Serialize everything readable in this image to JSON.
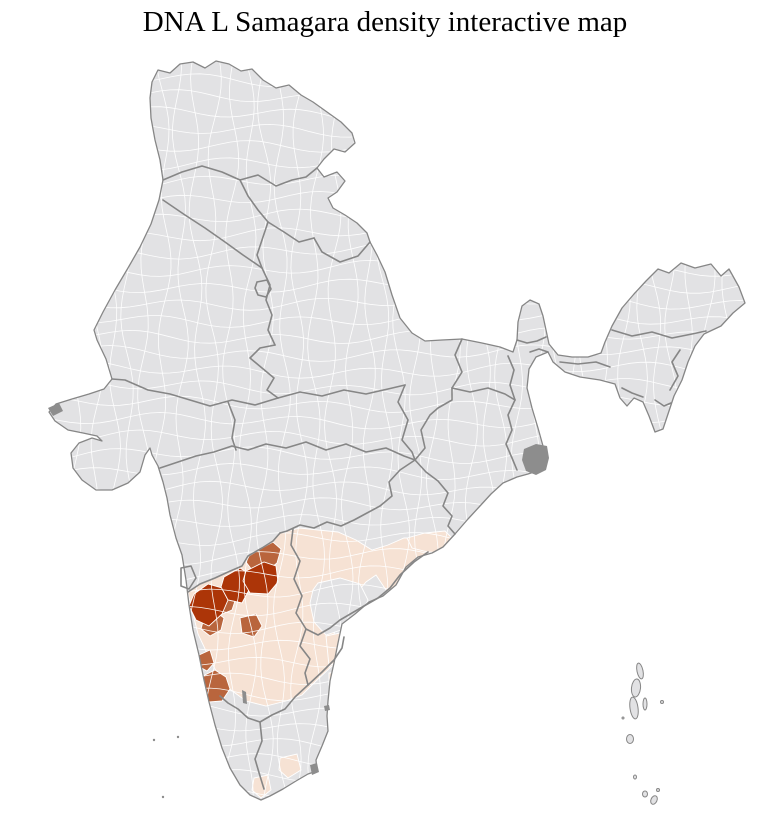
{
  "title": "DNA L Samagara density interactive map",
  "map": {
    "background": "#ffffff",
    "colors": {
      "district_fill": "#e2e2e4",
      "district_border": "#ffffff",
      "state_border": "#868686",
      "country_border": "#868686",
      "density_high": "#ac3508",
      "density_medium": "#b9653d",
      "density_low": "#f6e2d4",
      "delta_islands": "#8d8d8d"
    },
    "density_classes": [
      {
        "level": "high",
        "color": "#ac3508"
      },
      {
        "level": "medium",
        "color": "#b9653d"
      },
      {
        "level": "low",
        "color": "#f6e2d4"
      },
      {
        "level": "none",
        "color": "#e2e2e4"
      }
    ]
  }
}
